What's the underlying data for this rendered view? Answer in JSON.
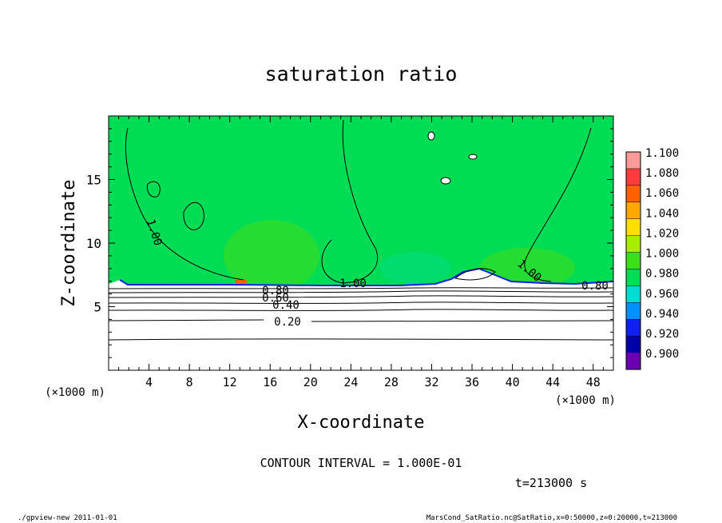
{
  "chart_data": {
    "type": "heatmap",
    "title": "saturation ratio",
    "xlabel": "X-coordinate",
    "ylabel": "Z-coordinate",
    "x_unit": "(×1000 m)",
    "y_unit": "(×1000 m)",
    "xlim": [
      0,
      50
    ],
    "ylim": [
      0,
      20
    ],
    "x_ticks": [
      4,
      8,
      12,
      16,
      20,
      24,
      28,
      32,
      36,
      40,
      44,
      48
    ],
    "y_ticks": [
      5,
      10,
      15
    ],
    "colorbar": {
      "levels": [
        "1.100",
        "1.080",
        "1.060",
        "1.040",
        "1.020",
        "1.000",
        "0.980",
        "0.960",
        "0.940",
        "0.920",
        "0.900"
      ],
      "colors": [
        "#ff9a9a",
        "#ff3b3b",
        "#ff6000",
        "#ffa800",
        "#ffdf00",
        "#a8ee00",
        "#3dde1a",
        "#00dd55",
        "#00ddd0",
        "#0090ff",
        "#1020ee",
        "#0000a8",
        "#6a00b0"
      ]
    },
    "contour_labels": [
      "1.00",
      "1.00",
      "1.00",
      "0.80",
      "0.80",
      "0.60",
      "0.40",
      "0.20"
    ],
    "contour_interval_text": "CONTOUR INTERVAL = 1.000E-01",
    "time_text": "t=213000 s"
  },
  "footer": {
    "left": "./gpview-new   2011-01-01",
    "right": "MarsCond_SatRatio.nc@SatRatio,x=0:50000,z=0:20000,t=213000"
  }
}
